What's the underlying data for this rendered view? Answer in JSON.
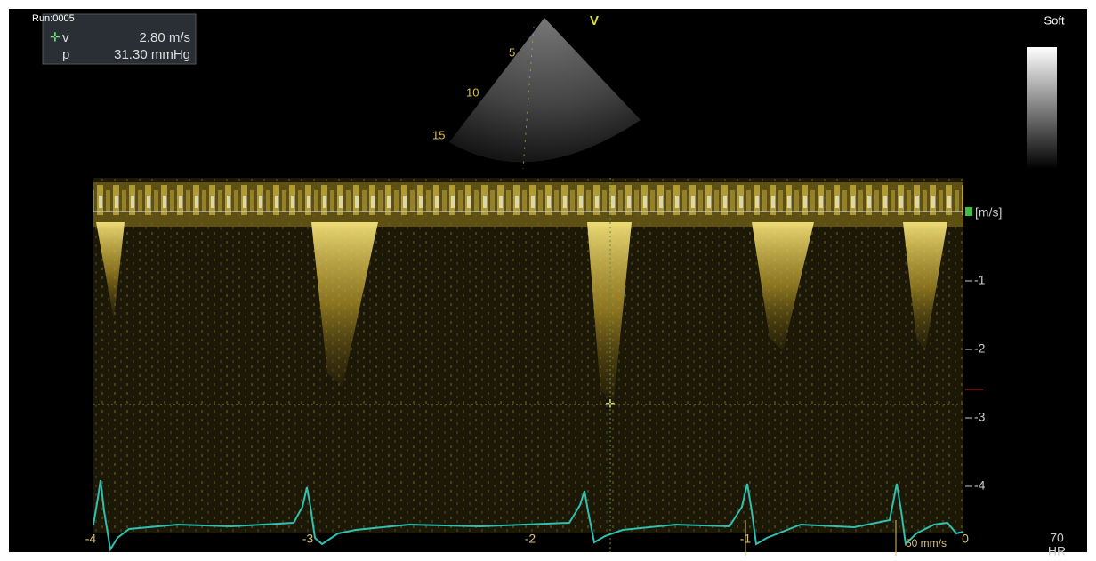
{
  "header": {
    "run": "Run:0005",
    "measurements": [
      {
        "label": "v",
        "value": "2.80 m/s"
      },
      {
        "label": "p",
        "value": "31.30 mmHg"
      }
    ]
  },
  "sector": {
    "mode": "V",
    "depths": [
      "5",
      "10",
      "15"
    ]
  },
  "gray_map": "Soft",
  "spectrum": {
    "unit": "[m/s]",
    "velocity_labels": [
      "-1",
      "-2",
      "-3",
      "-4"
    ],
    "time_labels": [
      "-4",
      "-3",
      "-2",
      "-1",
      "0"
    ],
    "sweep": "50 mm/s"
  },
  "heart_rate": {
    "value": "70",
    "label": "HR"
  }
}
